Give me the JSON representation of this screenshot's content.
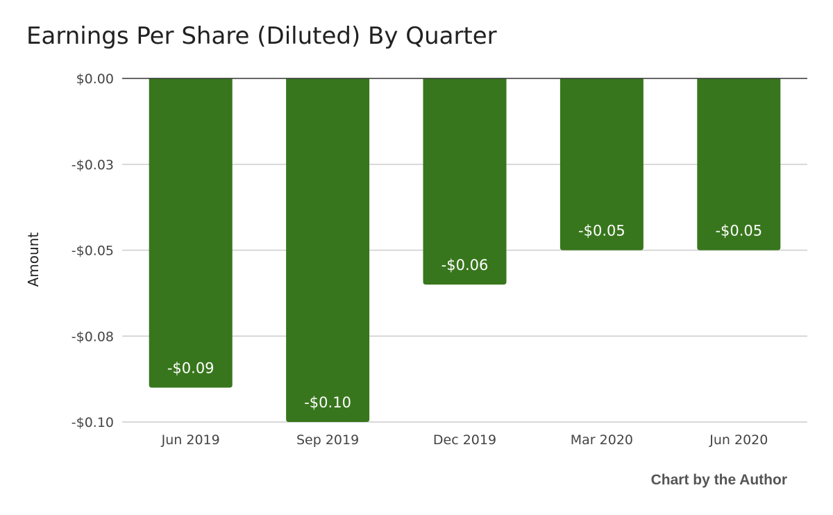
{
  "chart_data": {
    "type": "bar",
    "title": "Earnings Per Share (Diluted) By Quarter",
    "ylabel": "Amount",
    "xlabel": "",
    "categories": [
      "Jun 2019",
      "Sep 2019",
      "Dec 2019",
      "Mar 2020",
      "Jun 2020"
    ],
    "values": [
      -0.09,
      -0.1,
      -0.06,
      -0.05,
      -0.05
    ],
    "data_labels": [
      "-$0.09",
      "-$0.10",
      "-$0.06",
      "-$0.05",
      "-$0.05"
    ],
    "ylim": [
      -0.1,
      0.0
    ],
    "y_ticks": [
      {
        "value": 0.0,
        "label": "$0.00"
      },
      {
        "value": -0.025,
        "label": "-$0.03"
      },
      {
        "value": -0.05,
        "label": "-$0.05"
      },
      {
        "value": -0.075,
        "label": "-$0.08"
      },
      {
        "value": -0.1,
        "label": "-$0.10"
      }
    ],
    "bar_color": "#38761d",
    "grid": true,
    "legend": "none"
  },
  "footer": {
    "credit": "Chart by the Author"
  }
}
